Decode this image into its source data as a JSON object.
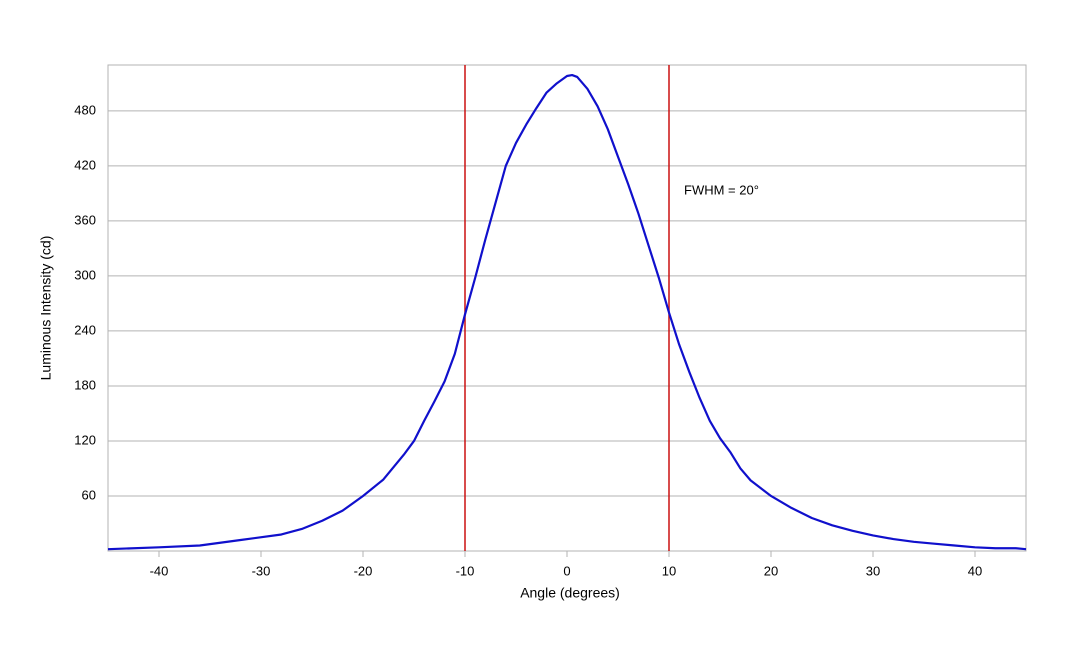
{
  "chart_data": {
    "type": "line",
    "x_label": "Angle (degrees)",
    "y_label": "Luminous Intensity (cd)",
    "annotation": "FWHM = 20°",
    "x": [
      -45,
      -40,
      -36,
      -32,
      -28,
      -26,
      -24,
      -22,
      -20,
      -18,
      -16,
      -15,
      -14,
      -13,
      -12,
      -11,
      -10,
      -9,
      -8,
      -7,
      -6,
      -5,
      -4,
      -3,
      -2,
      -1,
      0,
      0.5,
      1,
      2,
      3,
      4,
      5,
      6,
      7,
      8,
      9,
      10,
      11,
      12,
      13,
      14,
      15,
      16,
      17,
      18,
      20,
      22,
      24,
      26,
      28,
      30,
      32,
      34,
      36,
      38,
      40,
      42,
      44,
      45
    ],
    "values": [
      2,
      4,
      6,
      12,
      18,
      24,
      33,
      44,
      60,
      78,
      105,
      120,
      142,
      163,
      185,
      215,
      258,
      298,
      340,
      380,
      420,
      445,
      465,
      483,
      500,
      510,
      518,
      519,
      517,
      504,
      485,
      460,
      430,
      400,
      368,
      333,
      298,
      260,
      225,
      195,
      167,
      142,
      123,
      108,
      90,
      77,
      60,
      47,
      36,
      28,
      22,
      17,
      13,
      10,
      8,
      6,
      4,
      3,
      3,
      2
    ],
    "color": "#1010cc",
    "vlines": [
      -10,
      10
    ],
    "vline_color": "#cc1111",
    "xlim": [
      -45,
      45
    ],
    "xticks": [
      -40,
      -30,
      -20,
      -10,
      0,
      10,
      20,
      30,
      40
    ],
    "ylim": [
      0,
      530
    ],
    "yticks": [
      60,
      120,
      180,
      240,
      300,
      360,
      420,
      480
    ],
    "grid": true
  }
}
